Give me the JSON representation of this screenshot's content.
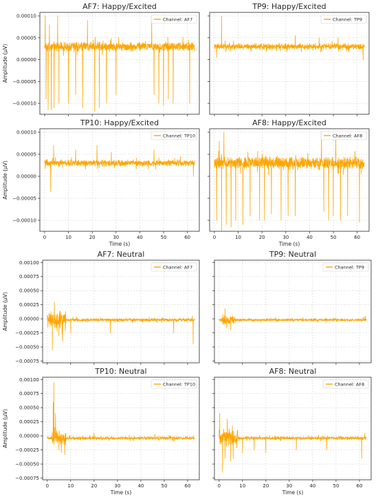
{
  "figure": {
    "style": {
      "line_color": "#FFA500",
      "grid_color": "#cccccc",
      "axis_color": "#262626",
      "background": "#ffffff"
    }
  },
  "chart_data": [
    {
      "type": "line",
      "title": "AF7: Happy/Excited",
      "ylabel": "Amplitude (µV)",
      "xlabel": "",
      "xlim": [
        -2,
        65
      ],
      "ylim": [
        -0.000125,
        0.000108
      ],
      "yticks": [
        0.0001,
        5e-05,
        0,
        -5e-05,
        -0.0001
      ],
      "ytick_labels": [
        "0.00010",
        "0.00005",
        "0.00000",
        "−0.00005",
        "−0.00010"
      ],
      "xticks": [
        0,
        10,
        20,
        30,
        40,
        50,
        60
      ],
      "xtick_labels": [],
      "legend": {
        "label": "Channel: AF7",
        "loc": "upper right"
      },
      "grid": true,
      "signal": {
        "duration_s": 63,
        "baseline": 3e-05,
        "noise_amplitude": 1.2e-05,
        "events": [
          {
            "t": 0.3,
            "v": 0.0001
          },
          {
            "t": 0.6,
            "v": -9e-05
          },
          {
            "t": 1.5,
            "v": -0.000115
          },
          {
            "t": 2,
            "v": 8e-05
          },
          {
            "t": 2.8,
            "v": -0.000115
          },
          {
            "t": 4,
            "v": -0.00011
          },
          {
            "t": 5.5,
            "v": 0.0001
          },
          {
            "t": 6,
            "v": -0.0001
          },
          {
            "t": 10,
            "v": -0.0001
          },
          {
            "t": 13,
            "v": -8e-05
          },
          {
            "t": 16,
            "v": -0.00011
          },
          {
            "t": 18,
            "v": 9e-05
          },
          {
            "t": 21,
            "v": -0.000118
          },
          {
            "t": 23,
            "v": -0.00011
          },
          {
            "t": 26,
            "v": -0.0001
          },
          {
            "t": 30,
            "v": -8e-05
          },
          {
            "t": 45,
            "v": 0.0001
          },
          {
            "t": 46,
            "v": -8e-05
          },
          {
            "t": 48,
            "v": -0.0001
          },
          {
            "t": 50,
            "v": -0.000105
          },
          {
            "t": 52,
            "v": -9e-05
          },
          {
            "t": 54,
            "v": -0.0001
          },
          {
            "t": 61,
            "v": -0.0001
          }
        ]
      }
    },
    {
      "type": "line",
      "title": "TP9: Happy/Excited",
      "ylabel": "",
      "xlabel": "",
      "xlim": [
        -2,
        65
      ],
      "ylim": [
        -0.000125,
        0.000108
      ],
      "yticks": [
        0.0001,
        5e-05,
        0,
        -5e-05,
        -0.0001
      ],
      "ytick_labels": [],
      "xticks": [
        0,
        10,
        20,
        30,
        40,
        50,
        60
      ],
      "xtick_labels": [],
      "legend": {
        "label": "Channel: TP9",
        "loc": "upper right"
      },
      "grid": true,
      "signal": {
        "duration_s": 63,
        "baseline": 3e-05,
        "noise_amplitude": 7.5e-06,
        "events": [
          {
            "t": 3,
            "v": 0.0001
          },
          {
            "t": 1,
            "v": 5e-06
          },
          {
            "t": 34,
            "v": 5.5e-05
          },
          {
            "t": 44,
            "v": 5e-05
          },
          {
            "t": 52,
            "v": 5e-05
          },
          {
            "t": 62.5,
            "v": 0.0
          }
        ]
      }
    },
    {
      "type": "line",
      "title": "TP10: Happy/Excited",
      "ylabel": "Amplitude (µV)",
      "xlabel": "Time (s)",
      "xlim": [
        -2,
        65
      ],
      "ylim": [
        -0.000125,
        0.000108
      ],
      "yticks": [
        0.0001,
        5e-05,
        0,
        -5e-05,
        -0.0001
      ],
      "ytick_labels": [
        "0.00010",
        "0.00005",
        "0.00000",
        "−0.00005",
        "−0.00010"
      ],
      "xticks": [
        0,
        10,
        20,
        30,
        40,
        50,
        60
      ],
      "xtick_labels": [
        "0",
        "10",
        "20",
        "30",
        "40",
        "50",
        "60"
      ],
      "legend": {
        "label": "Channel: TP10",
        "loc": "upper right"
      },
      "grid": true,
      "signal": {
        "duration_s": 63,
        "baseline": 3e-05,
        "noise_amplitude": 8.5e-06,
        "events": [
          {
            "t": 2.5,
            "v": -3.5e-05
          },
          {
            "t": 3.8,
            "v": 7e-05
          },
          {
            "t": 13,
            "v": 6e-05
          },
          {
            "t": 22,
            "v": 7e-05
          },
          {
            "t": 28,
            "v": 5.5e-05
          },
          {
            "t": 46,
            "v": 6e-05
          },
          {
            "t": 62.5,
            "v": 0.0
          }
        ]
      }
    },
    {
      "type": "line",
      "title": "AF8: Happy/Excited",
      "ylabel": "",
      "xlabel": "Time (s)",
      "xlim": [
        -2,
        65
      ],
      "ylim": [
        -0.000125,
        0.000108
      ],
      "yticks": [
        0.0001,
        5e-05,
        0,
        -5e-05,
        -0.0001
      ],
      "ytick_labels": [],
      "xticks": [
        0,
        10,
        20,
        30,
        40,
        50,
        60
      ],
      "xtick_labels": [
        "0",
        "10",
        "20",
        "30",
        "40",
        "50",
        "60"
      ],
      "legend": {
        "label": "Channel: AF8",
        "loc": "upper right"
      },
      "grid": true,
      "signal": {
        "duration_s": 63,
        "baseline": 3e-05,
        "noise_amplitude": 1.6e-05,
        "events": [
          {
            "t": 1,
            "v": -0.0001
          },
          {
            "t": 2,
            "v": 8e-05
          },
          {
            "t": 3,
            "v": -0.000125
          },
          {
            "t": 4,
            "v": 0.0001
          },
          {
            "t": 5,
            "v": -0.00011
          },
          {
            "t": 7,
            "v": -0.000115
          },
          {
            "t": 9,
            "v": -0.0001
          },
          {
            "t": 12,
            "v": -0.00011
          },
          {
            "t": 15,
            "v": -9e-05
          },
          {
            "t": 19,
            "v": -0.0001
          },
          {
            "t": 21,
            "v": -0.0001
          },
          {
            "t": 24,
            "v": -8.5e-05
          },
          {
            "t": 28,
            "v": -0.0001
          },
          {
            "t": 31,
            "v": -9e-05
          },
          {
            "t": 34,
            "v": -9e-05
          },
          {
            "t": 45,
            "v": 0.0001
          },
          {
            "t": 46,
            "v": -8e-05
          },
          {
            "t": 48,
            "v": -0.0001
          },
          {
            "t": 50,
            "v": -9e-05
          },
          {
            "t": 51,
            "v": 0.0001
          },
          {
            "t": 53,
            "v": -0.0001
          },
          {
            "t": 56,
            "v": -9e-05
          },
          {
            "t": 61,
            "v": -0.000105
          }
        ]
      }
    },
    {
      "type": "line",
      "title": "AF7: Neutral",
      "ylabel": "Amplitude (µV)",
      "xlabel": "",
      "xlim": [
        -2,
        65
      ],
      "ylim": [
        -0.00078,
        0.00104
      ],
      "yticks": [
        0.001,
        0.00075,
        0.0005,
        0.00025,
        0,
        -0.00025,
        -0.0005,
        -0.00075
      ],
      "ytick_labels": [
        "0.00100",
        "0.00075",
        "0.00050",
        "0.00025",
        "0.00000",
        "−0.00025",
        "−0.00050",
        "−0.00075"
      ],
      "xticks": [
        0,
        10,
        20,
        30,
        40,
        50,
        60
      ],
      "xtick_labels": [],
      "legend": {
        "label": "Channel: AF7",
        "loc": "upper right"
      },
      "grid": true,
      "signal": {
        "duration_s": 63,
        "baseline": -2e-05,
        "noise_amplitude": 3e-05,
        "burst": {
          "start": 0,
          "end": 8,
          "amplitude": 0.00018
        },
        "events": [
          {
            "t": 2.2,
            "v": -0.00055
          },
          {
            "t": 3,
            "v": 0.0003
          },
          {
            "t": 5,
            "v": -0.0003
          },
          {
            "t": 6.5,
            "v": -0.0004
          },
          {
            "t": 10,
            "v": -0.00025
          },
          {
            "t": 27,
            "v": -0.00025
          },
          {
            "t": 54,
            "v": -0.00025
          },
          {
            "t": 62,
            "v": 5e-05
          },
          {
            "t": 62.4,
            "v": -0.00045
          }
        ]
      }
    },
    {
      "type": "line",
      "title": "TP9: Neutral",
      "ylabel": "",
      "xlabel": "",
      "xlim": [
        -2,
        65
      ],
      "ylim": [
        -0.00078,
        0.00104
      ],
      "yticks": [
        0.001,
        0.00075,
        0.0005,
        0.00025,
        0,
        -0.00025,
        -0.0005,
        -0.00075
      ],
      "ytick_labels": [],
      "xticks": [
        0,
        10,
        20,
        30,
        40,
        50,
        60
      ],
      "xtick_labels": [],
      "legend": {
        "label": "Channel: TP9",
        "loc": "upper right"
      },
      "grid": true,
      "signal": {
        "duration_s": 63,
        "baseline": -2e-05,
        "noise_amplitude": 2.5e-05,
        "burst": {
          "start": 1,
          "end": 7,
          "amplitude": 0.0001
        },
        "events": [
          {
            "t": 2.5,
            "v": 0.00018
          },
          {
            "t": 3.2,
            "v": -0.00016
          },
          {
            "t": 5,
            "v": -0.0002
          },
          {
            "t": 62.5,
            "v": 5e-05
          }
        ]
      }
    },
    {
      "type": "line",
      "title": "TP10: Neutral",
      "ylabel": "Amplitude (µV)",
      "xlabel": "Time (s)",
      "xlim": [
        -2,
        65
      ],
      "ylim": [
        -0.00078,
        0.00104
      ],
      "yticks": [
        0.001,
        0.00075,
        0.0005,
        0.00025,
        0,
        -0.00025,
        -0.0005,
        -0.00075
      ],
      "ytick_labels": [
        "0.00100",
        "0.00075",
        "0.00050",
        "0.00025",
        "0.00000",
        "−0.00025",
        "−0.00050",
        "−0.00075"
      ],
      "xticks": [
        0,
        10,
        20,
        30,
        40,
        50,
        60
      ],
      "xtick_labels": [
        "0",
        "10",
        "20",
        "30",
        "40",
        "50",
        "60"
      ],
      "legend": {
        "label": "Channel: TP10",
        "loc": "upper right"
      },
      "grid": true,
      "signal": {
        "duration_s": 63,
        "baseline": -4e-05,
        "noise_amplitude": 3e-05,
        "burst": {
          "start": 2,
          "end": 8,
          "amplitude": 0.00014
        },
        "events": [
          {
            "t": 2.8,
            "v": 0.00095
          },
          {
            "t": 2.5,
            "v": 0.0006
          },
          {
            "t": 3.5,
            "v": 0.0004
          },
          {
            "t": 5,
            "v": -0.00025
          },
          {
            "t": 6,
            "v": -0.0003
          },
          {
            "t": 7.5,
            "v": -0.00033
          },
          {
            "t": 20,
            "v": 5e-05
          },
          {
            "t": 46,
            "v": 3e-05
          },
          {
            "t": 62.5,
            "v": 0.0
          }
        ]
      }
    },
    {
      "type": "line",
      "title": "AF8: Neutral",
      "ylabel": "",
      "xlabel": "Time (s)",
      "xlim": [
        -2,
        65
      ],
      "ylim": [
        -0.00078,
        0.00104
      ],
      "yticks": [
        0.001,
        0.00075,
        0.0005,
        0.00025,
        0,
        -0.00025,
        -0.0005,
        -0.00075
      ],
      "ytick_labels": [],
      "xticks": [
        0,
        10,
        20,
        30,
        40,
        50,
        60
      ],
      "xtick_labels": [
        "0",
        "10",
        "20",
        "30",
        "40",
        "50",
        "60"
      ],
      "legend": {
        "label": "Channel: AF8",
        "loc": "upper right"
      },
      "grid": true,
      "signal": {
        "duration_s": 63,
        "baseline": -4e-05,
        "noise_amplitude": 3e-05,
        "burst": {
          "start": 0,
          "end": 8,
          "amplitude": 0.00018
        },
        "events": [
          {
            "t": 0.3,
            "v": 0.0004
          },
          {
            "t": 1.5,
            "v": -0.00065
          },
          {
            "t": 2.5,
            "v": -0.0004
          },
          {
            "t": 3.5,
            "v": 0.0003
          },
          {
            "t": 5,
            "v": -0.00045
          },
          {
            "t": 6,
            "v": -0.0004
          },
          {
            "t": 10,
            "v": -0.0003
          },
          {
            "t": 15,
            "v": -0.00025
          },
          {
            "t": 20,
            "v": -0.0003
          },
          {
            "t": 33,
            "v": -0.00025
          },
          {
            "t": 46,
            "v": -0.00025
          },
          {
            "t": 61,
            "v": -0.0004
          },
          {
            "t": 62.3,
            "v": 5e-05
          }
        ]
      }
    }
  ]
}
